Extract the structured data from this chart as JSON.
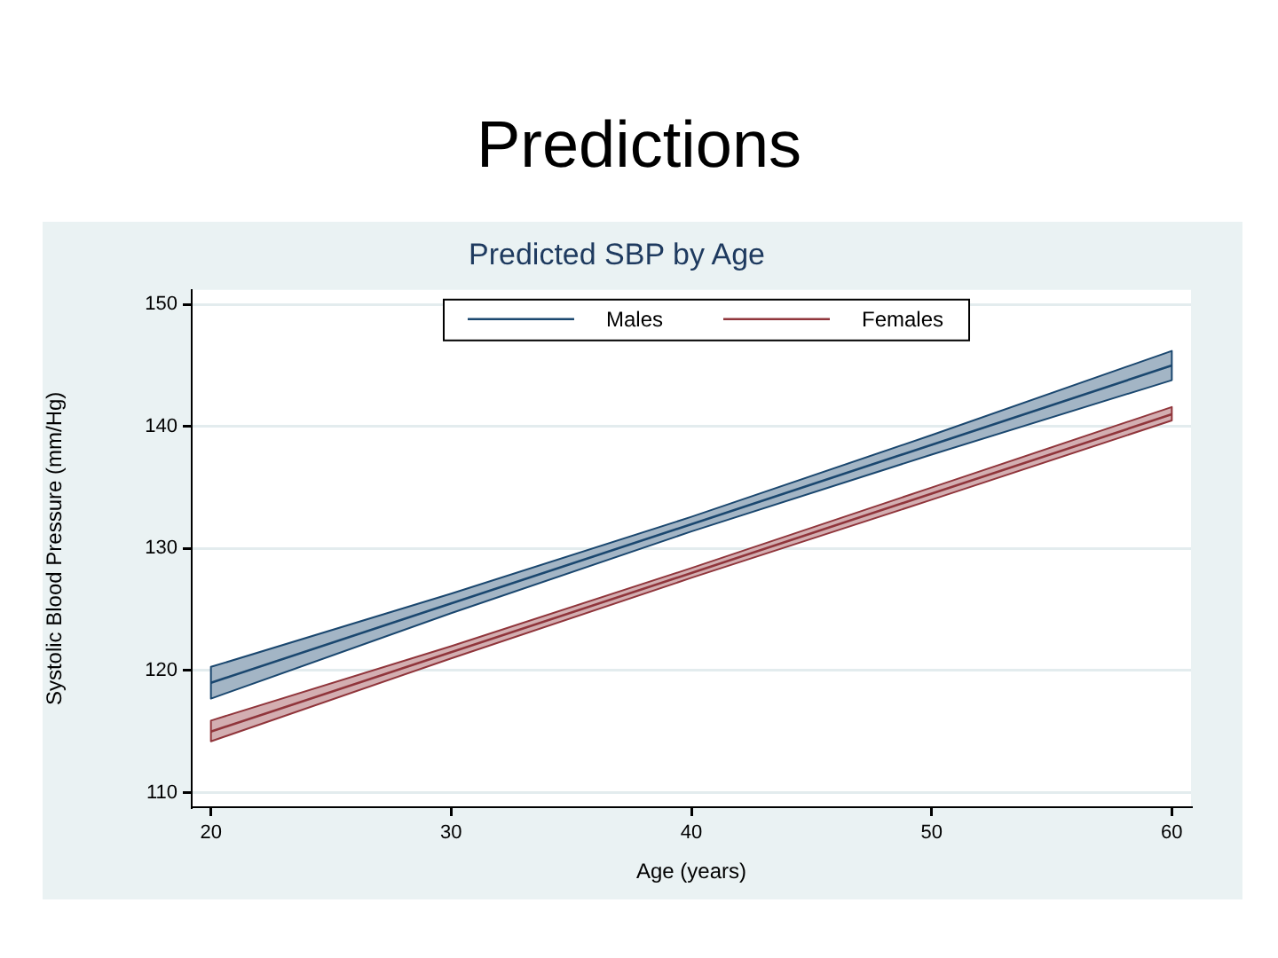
{
  "chart_data": {
    "type": "line",
    "title": "Predictions",
    "subtitle": "Predicted SBP by Age",
    "xlabel": "Age (years)",
    "ylabel": "Systolic Blood Pressure (mm/Hg)",
    "x": [
      20,
      30,
      40,
      50,
      60
    ],
    "series": [
      {
        "name": "Males",
        "color": "#1a476f",
        "values": [
          119.0,
          125.5,
          132.0,
          138.5,
          145.0
        ],
        "lower": [
          117.7,
          124.7,
          131.4,
          137.7,
          143.8
        ],
        "upper": [
          120.3,
          126.3,
          132.6,
          139.3,
          146.2
        ]
      },
      {
        "name": "Females",
        "color": "#90353b",
        "values": [
          115.0,
          121.5,
          128.0,
          134.5,
          141.0
        ],
        "lower": [
          114.2,
          121.0,
          127.6,
          134.0,
          140.5
        ],
        "upper": [
          115.9,
          122.0,
          128.4,
          135.0,
          141.6
        ]
      }
    ],
    "xlim": [
      19.2,
      60.8
    ],
    "ylim": [
      108.8,
      151.2
    ],
    "xticks": [
      20,
      30,
      40,
      50,
      60
    ],
    "yticks": [
      110,
      120,
      130,
      140,
      150
    ],
    "grid": "y",
    "legend": "top",
    "marker": "none"
  }
}
